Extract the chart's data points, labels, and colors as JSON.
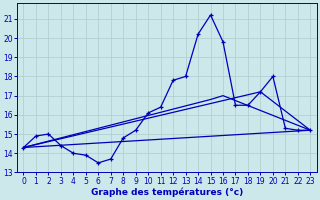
{
  "title": "Graphe des températures (°c)",
  "background_color": "#cce8ea",
  "grid_color": "#aacccc",
  "line_color": "#0000bb",
  "xlim": [
    -0.5,
    23.5
  ],
  "ylim": [
    13,
    21.8
  ],
  "xticks": [
    0,
    1,
    2,
    3,
    4,
    5,
    6,
    7,
    8,
    9,
    10,
    11,
    12,
    13,
    14,
    15,
    16,
    17,
    18,
    19,
    20,
    21,
    22,
    23
  ],
  "yticks": [
    13,
    14,
    15,
    16,
    17,
    18,
    19,
    20,
    21
  ],
  "series1_x": [
    0,
    1,
    2,
    3,
    4,
    5,
    6,
    7,
    8,
    9,
    10,
    11,
    12,
    13,
    14,
    15,
    16,
    17,
    18,
    19,
    20,
    21,
    22,
    23
  ],
  "series1_y": [
    14.3,
    14.9,
    15.0,
    14.4,
    14.0,
    13.9,
    13.5,
    13.7,
    14.8,
    15.2,
    16.1,
    16.4,
    17.8,
    18.0,
    20.2,
    21.2,
    19.8,
    16.5,
    16.5,
    17.2,
    18.0,
    15.3,
    15.2,
    15.2
  ],
  "line2_x": [
    0,
    23
  ],
  "line2_y": [
    14.3,
    15.2
  ],
  "line3_x": [
    0,
    19,
    23
  ],
  "line3_y": [
    14.3,
    17.2,
    15.2
  ],
  "line4_x": [
    0,
    15,
    16,
    23
  ],
  "line4_y": [
    14.3,
    16.8,
    17.0,
    15.2
  ]
}
